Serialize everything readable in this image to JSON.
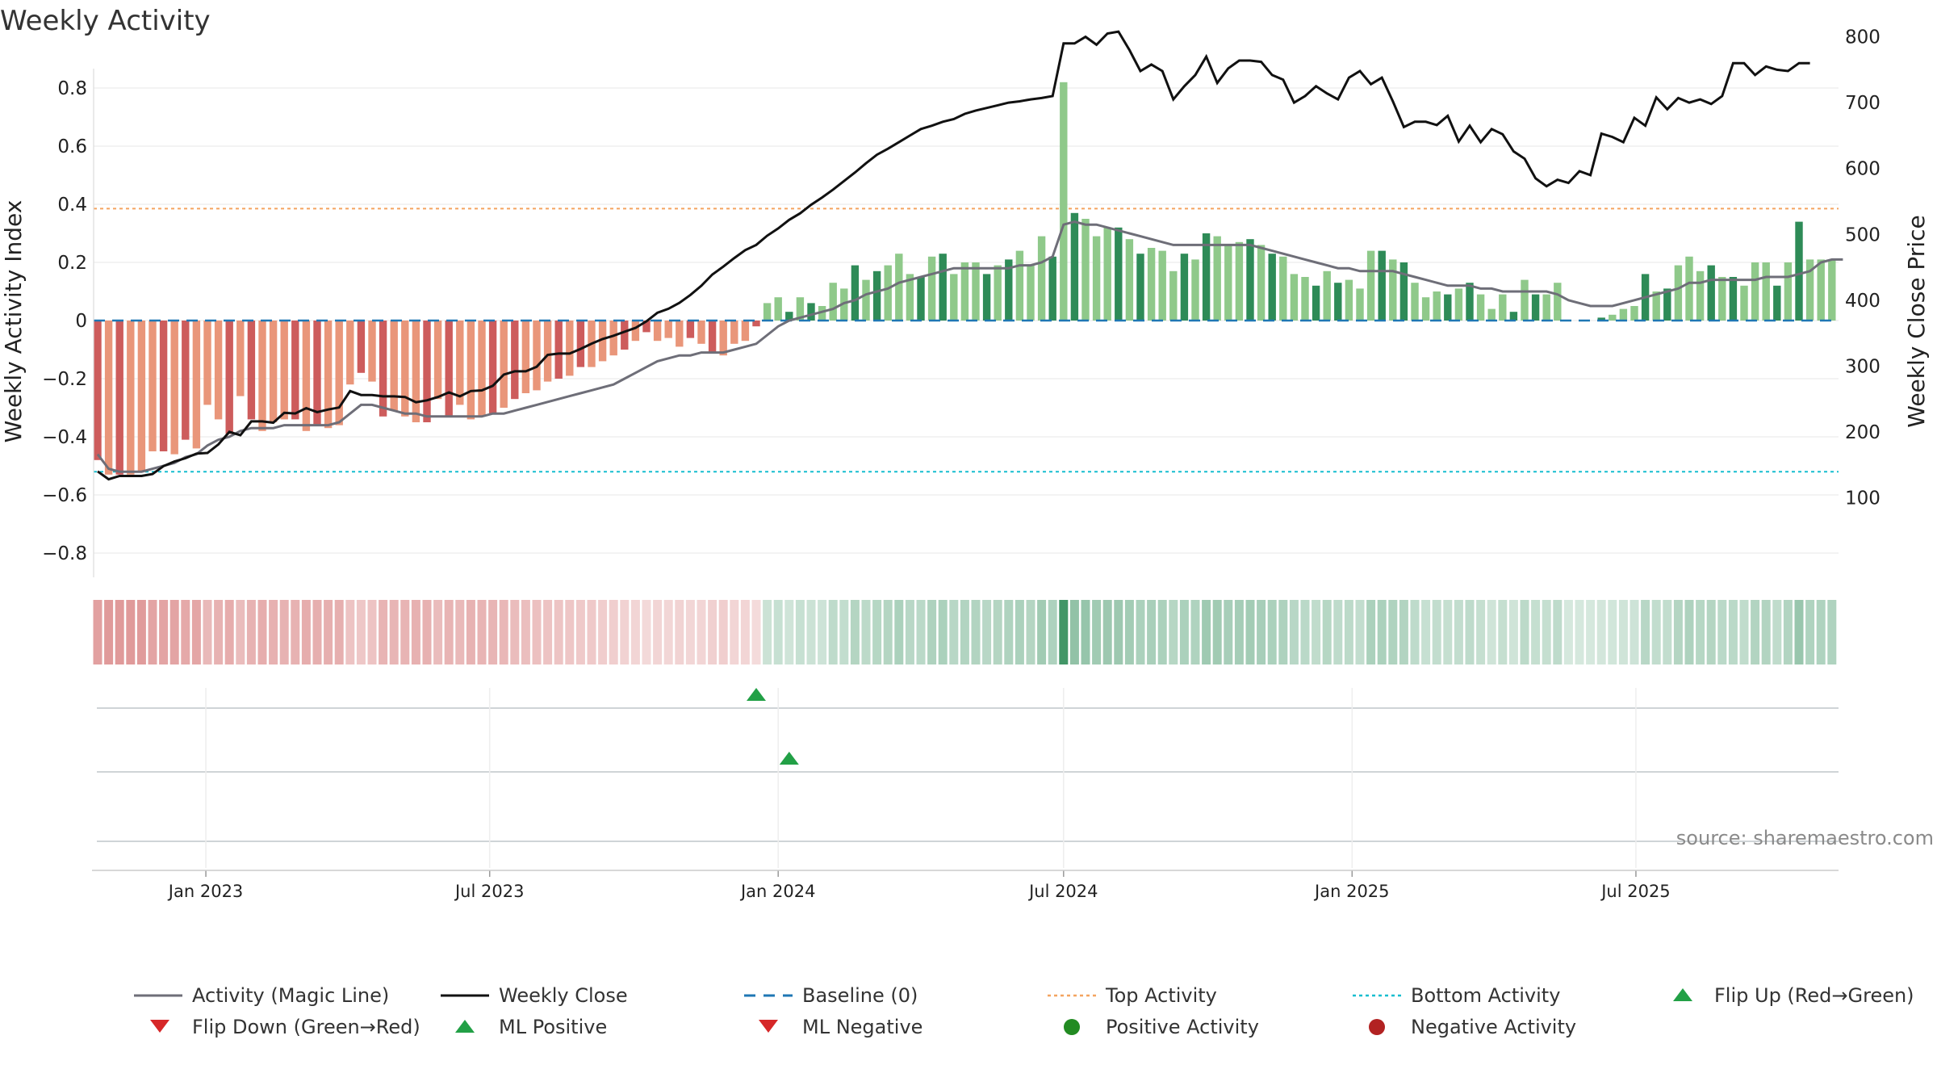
{
  "title": "Weekly Activity",
  "source": "source: sharemaestro.com",
  "colors": {
    "neg_strong": "#cd5c5c",
    "neg_light": "#e9967a",
    "pos_strong": "#2e8b57",
    "pos_light": "#8fc98a",
    "magic_line": "#6e6e78",
    "weekly_close": "#111111",
    "baseline": "#1f77b4",
    "top_activity": "#f4a460",
    "bottom_activity": "#17becf",
    "flip_up": "#22a046",
    "flip_down": "#d62728",
    "positive_dot": "#228b22",
    "negative_dot": "#b22222"
  },
  "chart_data": {
    "type": "bar",
    "title": "Weekly Activity",
    "x_start": "2022-10-24",
    "x_step_days": 7,
    "x_ticks": [
      "Jan 2023",
      "Jul 2023",
      "Jan 2024",
      "Jul 2024",
      "Jan 2025",
      "Jul 2025"
    ],
    "y_left": {
      "label": "Weekly Activity Index",
      "ticks": [
        "−0.8",
        "−0.6",
        "−0.4",
        "−0.2",
        "0",
        "0.2",
        "0.4",
        "0.6",
        "0.8"
      ],
      "range": [
        -0.88,
        0.87
      ]
    },
    "y_right": {
      "label": "Weekly Close Price",
      "ticks": [
        "100",
        "200",
        "300",
        "400",
        "500",
        "600",
        "700",
        "800"
      ],
      "range": [
        85,
        830
      ]
    },
    "top_activity": 0.385,
    "bottom_activity": -0.52,
    "baseline": 0,
    "activity": [
      -0.48,
      -0.53,
      -0.53,
      -0.53,
      -0.52,
      -0.45,
      -0.45,
      -0.46,
      -0.41,
      -0.44,
      -0.29,
      -0.34,
      -0.39,
      -0.26,
      -0.34,
      -0.38,
      -0.35,
      -0.34,
      -0.34,
      -0.38,
      -0.36,
      -0.37,
      -0.36,
      -0.22,
      -0.18,
      -0.21,
      -0.33,
      -0.31,
      -0.33,
      -0.35,
      -0.35,
      -0.27,
      -0.33,
      -0.29,
      -0.34,
      -0.33,
      -0.32,
      -0.3,
      -0.27,
      -0.25,
      -0.24,
      -0.21,
      -0.2,
      -0.19,
      -0.16,
      -0.16,
      -0.14,
      -0.12,
      -0.1,
      -0.07,
      -0.04,
      -0.07,
      -0.06,
      -0.09,
      -0.06,
      -0.08,
      -0.11,
      -0.12,
      -0.08,
      -0.07,
      -0.02,
      0.06,
      0.08,
      0.03,
      0.08,
      0.06,
      0.05,
      0.13,
      0.11,
      0.19,
      0.14,
      0.17,
      0.19,
      0.23,
      0.16,
      0.15,
      0.22,
      0.23,
      0.16,
      0.2,
      0.2,
      0.16,
      0.19,
      0.21,
      0.24,
      0.19,
      0.29,
      0.22,
      0.82,
      0.37,
      0.35,
      0.29,
      0.32,
      0.32,
      0.28,
      0.23,
      0.25,
      0.24,
      0.17,
      0.23,
      0.21,
      0.3,
      0.29,
      0.26,
      0.27,
      0.28,
      0.26,
      0.23,
      0.22,
      0.16,
      0.15,
      0.12,
      0.17,
      0.13,
      0.14,
      0.11,
      0.24,
      0.24,
      0.21,
      0.2,
      0.13,
      0.08,
      0.1,
      0.09,
      0.11,
      0.13,
      0.09,
      0.04,
      0.09,
      0.03,
      0.14,
      0.09,
      0.09,
      0.13,
      0.0,
      0.0,
      0.0,
      0.01,
      0.02,
      0.04,
      0.05,
      0.16,
      0.1,
      0.11,
      0.19,
      0.22,
      0.17,
      0.19,
      0.15,
      0.15,
      0.12,
      0.2,
      0.2,
      0.12,
      0.2,
      0.34,
      0.21,
      0.21,
      0.21
    ],
    "weekly_close": [
      140,
      128,
      133,
      133,
      133,
      136,
      148,
      155,
      160,
      167,
      168,
      181,
      200,
      195,
      216,
      216,
      214,
      229,
      228,
      236,
      230,
      234,
      237,
      262,
      256,
      256,
      254,
      254,
      253,
      245,
      248,
      253,
      260,
      254,
      262,
      263,
      270,
      287,
      292,
      292,
      299,
      317,
      319,
      319,
      326,
      334,
      341,
      346,
      352,
      358,
      368,
      381,
      387,
      396,
      408,
      422,
      439,
      451,
      464,
      476,
      484,
      498,
      509,
      522,
      532,
      545,
      556,
      568,
      581,
      594,
      608,
      621,
      630,
      640,
      650,
      660,
      665,
      671,
      675,
      683,
      688,
      692,
      696,
      700,
      702,
      705,
      707,
      710,
      790,
      790,
      800,
      788,
      805,
      808,
      780,
      748,
      758,
      748,
      705,
      725,
      742,
      770,
      730,
      752,
      764,
      764,
      762,
      742,
      735,
      700,
      710,
      725,
      714,
      705,
      738,
      748,
      728,
      738,
      702,
      663,
      671,
      671,
      666,
      680,
      641,
      665,
      640,
      660,
      652,
      626,
      615,
      585,
      573,
      583,
      578,
      596,
      590,
      653,
      648,
      640,
      677,
      665,
      708,
      690,
      707,
      700,
      705,
      698,
      710,
      760,
      760,
      742,
      755,
      750,
      748,
      760,
      760
    ],
    "magic_line": [
      -0.46,
      -0.51,
      -0.52,
      -0.52,
      -0.52,
      -0.51,
      -0.5,
      -0.49,
      -0.47,
      -0.46,
      -0.43,
      -0.41,
      -0.4,
      -0.38,
      -0.37,
      -0.37,
      -0.37,
      -0.36,
      -0.36,
      -0.36,
      -0.36,
      -0.36,
      -0.35,
      -0.32,
      -0.29,
      -0.29,
      -0.3,
      -0.31,
      -0.32,
      -0.32,
      -0.33,
      -0.33,
      -0.33,
      -0.33,
      -0.33,
      -0.33,
      -0.32,
      -0.32,
      -0.31,
      -0.3,
      -0.29,
      -0.28,
      -0.27,
      -0.26,
      -0.25,
      -0.24,
      -0.23,
      -0.22,
      -0.2,
      -0.18,
      -0.16,
      -0.14,
      -0.13,
      -0.12,
      -0.12,
      -0.11,
      -0.11,
      -0.11,
      -0.1,
      -0.09,
      -0.08,
      -0.05,
      -0.02,
      0.0,
      0.01,
      0.02,
      0.03,
      0.04,
      0.06,
      0.07,
      0.09,
      0.1,
      0.11,
      0.13,
      0.14,
      0.15,
      0.16,
      0.17,
      0.18,
      0.18,
      0.18,
      0.18,
      0.18,
      0.18,
      0.19,
      0.19,
      0.2,
      0.22,
      0.33,
      0.34,
      0.33,
      0.33,
      0.32,
      0.31,
      0.3,
      0.29,
      0.28,
      0.27,
      0.26,
      0.26,
      0.26,
      0.26,
      0.26,
      0.26,
      0.26,
      0.26,
      0.25,
      0.24,
      0.23,
      0.22,
      0.21,
      0.2,
      0.19,
      0.18,
      0.18,
      0.17,
      0.17,
      0.17,
      0.17,
      0.16,
      0.15,
      0.14,
      0.13,
      0.12,
      0.12,
      0.12,
      0.11,
      0.11,
      0.1,
      0.1,
      0.1,
      0.1,
      0.1,
      0.09,
      0.07,
      0.06,
      0.05,
      0.05,
      0.05,
      0.06,
      0.07,
      0.08,
      0.09,
      0.1,
      0.11,
      0.13,
      0.13,
      0.14,
      0.14,
      0.14,
      0.14,
      0.14,
      0.15,
      0.15,
      0.15,
      0.16,
      0.17,
      0.2,
      0.21,
      0.21
    ],
    "flip_up_marker_week": 60,
    "ml_positive_marker_week": 63
  },
  "legend": {
    "magic_line": "Activity (Magic Line)",
    "weekly_close": "Weekly Close",
    "baseline": "Baseline (0)",
    "top_activity": "Top Activity",
    "bottom_activity": "Bottom Activity",
    "flip_up": "Flip Up (Red→Green)",
    "flip_down": "Flip Down (Green→Red)",
    "ml_positive": "ML Positive",
    "ml_negative": "ML Negative",
    "positive_activity": "Positive Activity",
    "negative_activity": "Negative Activity"
  }
}
